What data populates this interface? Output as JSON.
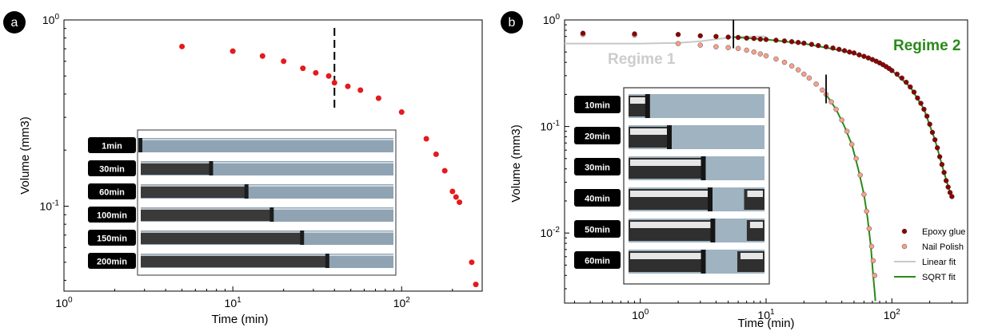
{
  "chart_data": [
    {
      "panel_label": "a",
      "type": "scatter",
      "xlabel": "Time (min)",
      "ylabel": "Volume (mm3)",
      "xscale": "log",
      "yscale": "log",
      "xlim": [
        1,
        300
      ],
      "ylim": [
        0.035,
        1
      ],
      "xticks": [
        {
          "v": 1,
          "b": "10",
          "e": "0"
        },
        {
          "v": 10,
          "b": "10",
          "e": "1"
        },
        {
          "v": 100,
          "b": "10",
          "e": "2"
        }
      ],
      "yticks": [
        {
          "v": 1,
          "b": "10",
          "e": "0"
        },
        {
          "v": 0.1,
          "b": "10",
          "e": "-1"
        }
      ],
      "marker_line_x": 40,
      "series": [
        {
          "color": "#e41a1c",
          "x": [
            5,
            10,
            15,
            20,
            26,
            31,
            37,
            40,
            48,
            57,
            73,
            100,
            140,
            160,
            180,
            200,
            210,
            220,
            260,
            275
          ],
          "y": [
            0.72,
            0.68,
            0.64,
            0.6,
            0.55,
            0.52,
            0.5,
            0.46,
            0.44,
            0.42,
            0.38,
            0.32,
            0.23,
            0.19,
            0.155,
            0.12,
            0.112,
            0.105,
            0.05,
            0.038
          ]
        }
      ],
      "inset_labels": [
        "1min",
        "30min",
        "60min",
        "100min",
        "150min",
        "200min"
      ],
      "inset_fill": [
        0.0,
        0.28,
        0.42,
        0.52,
        0.64,
        0.74
      ]
    },
    {
      "panel_label": "b",
      "type": "scatter",
      "xlabel": "Time (min)",
      "ylabel": "Volume (mm3)",
      "xscale": "log",
      "yscale": "log",
      "xlim": [
        0.25,
        400
      ],
      "ylim": [
        0.0022,
        1
      ],
      "xticks": [
        {
          "v": 1,
          "b": "10",
          "e": "0"
        },
        {
          "v": 10,
          "b": "10",
          "e": "1"
        },
        {
          "v": 100,
          "b": "10",
          "e": "2"
        }
      ],
      "yticks": [
        {
          "v": 1,
          "b": "10",
          "e": "0"
        },
        {
          "v": 0.1,
          "b": "10",
          "e": "-1"
        },
        {
          "v": 0.01,
          "b": "10",
          "e": "-2"
        }
      ],
      "annotations": [
        {
          "text": "Regime 1",
          "color": "#cccccc"
        },
        {
          "text": "Regime 2",
          "color": "#2a8a1a"
        }
      ],
      "marker_lines_x": [
        5.5,
        30
      ],
      "series": [
        {
          "name": "Epoxy glue",
          "color": "#8b0000",
          "x": [
            0.35,
            0.9,
            2,
            3,
            4,
            5,
            6,
            7,
            8,
            9,
            10,
            12,
            14,
            16,
            18,
            20,
            23,
            26,
            30,
            34,
            38,
            42,
            46,
            50,
            55,
            60,
            65,
            70,
            75,
            80,
            85,
            90,
            95,
            100,
            110,
            120,
            130,
            140,
            150,
            160,
            170,
            180,
            190,
            200,
            210,
            220,
            230,
            240,
            250,
            260,
            270,
            280,
            290,
            300
          ],
          "y": [
            0.75,
            0.74,
            0.73,
            0.71,
            0.7,
            0.69,
            0.685,
            0.675,
            0.67,
            0.66,
            0.655,
            0.645,
            0.635,
            0.625,
            0.615,
            0.605,
            0.59,
            0.575,
            0.56,
            0.545,
            0.53,
            0.515,
            0.5,
            0.49,
            0.47,
            0.455,
            0.44,
            0.425,
            0.41,
            0.395,
            0.38,
            0.365,
            0.35,
            0.335,
            0.31,
            0.285,
            0.26,
            0.235,
            0.21,
            0.185,
            0.165,
            0.145,
            0.125,
            0.105,
            0.088,
            0.075,
            0.063,
            0.052,
            0.044,
            0.037,
            0.031,
            0.027,
            0.024,
            0.022
          ]
        },
        {
          "name": "Nail Polish",
          "color": "#f4a08a",
          "x": [
            0.35,
            0.9,
            2,
            3,
            4,
            5,
            6,
            7,
            8,
            9,
            10,
            12,
            14,
            16,
            18,
            20,
            22,
            25,
            28,
            30,
            33,
            36,
            40,
            44,
            48,
            52,
            56,
            60,
            63,
            66,
            69,
            71,
            73
          ],
          "y": [
            0.73,
            0.72,
            0.6,
            0.58,
            0.56,
            0.55,
            0.54,
            0.52,
            0.5,
            0.48,
            0.46,
            0.43,
            0.4,
            0.37,
            0.34,
            0.31,
            0.285,
            0.25,
            0.22,
            0.2,
            0.17,
            0.145,
            0.115,
            0.09,
            0.068,
            0.05,
            0.035,
            0.023,
            0.016,
            0.011,
            0.0075,
            0.0055,
            0.004
          ]
        },
        {
          "name": "Linear fit",
          "color": "#c8c8c8",
          "x": [
            0.25,
            1,
            2,
            3,
            4,
            5,
            5.5,
            8,
            10
          ],
          "y": [
            0.6,
            0.6,
            0.61,
            0.63,
            0.66,
            0.68,
            0.69,
            0.7,
            0.7
          ]
        },
        {
          "name": "SQRT fit",
          "color": "#2a8a1a",
          "x": [
            5.5,
            10,
            20,
            40,
            60,
            80,
            100,
            140,
            180,
            220,
            260,
            290,
            30,
            36,
            42,
            48,
            54,
            60,
            64,
            68,
            71,
            73,
            74
          ],
          "y": [
            0.69,
            0.655,
            0.6,
            0.515,
            0.455,
            0.395,
            0.335,
            0.235,
            0.145,
            0.075,
            0.037,
            0.024,
            0.2,
            0.145,
            0.1,
            0.068,
            0.04,
            0.023,
            0.014,
            0.0075,
            0.004,
            0.0028,
            0.0023
          ]
        }
      ],
      "inset_labels": [
        "10min",
        "20min",
        "30min",
        "40min",
        "50min",
        "60min"
      ],
      "inset_fill": [
        0.14,
        0.3,
        0.55,
        0.6,
        0.62,
        0.55
      ]
    }
  ]
}
